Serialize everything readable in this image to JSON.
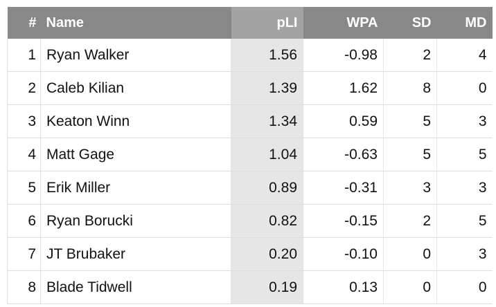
{
  "table": {
    "header": [
      "#",
      "Name",
      "pLI",
      "WPA",
      "SD",
      "MD"
    ],
    "rows": [
      [
        "1",
        "Ryan Walker",
        "1.56",
        "-0.98",
        "2",
        "4"
      ],
      [
        "2",
        "Caleb Kilian",
        "1.39",
        "1.62",
        "8",
        "0"
      ],
      [
        "3",
        "Keaton Winn",
        "1.34",
        "0.59",
        "5",
        "3"
      ],
      [
        "4",
        "Matt Gage",
        "1.04",
        "-0.63",
        "5",
        "5"
      ],
      [
        "5",
        "Erik Miller",
        "0.89",
        "-0.31",
        "3",
        "3"
      ],
      [
        "6",
        "Ryan Borucki",
        "0.82",
        "-0.15",
        "2",
        "5"
      ],
      [
        "7",
        "JT Brubaker",
        "0.20",
        "-0.10",
        "0",
        "3"
      ],
      [
        "8",
        "Blade Tidwell",
        "0.19",
        "0.13",
        "0",
        "0"
      ]
    ]
  }
}
